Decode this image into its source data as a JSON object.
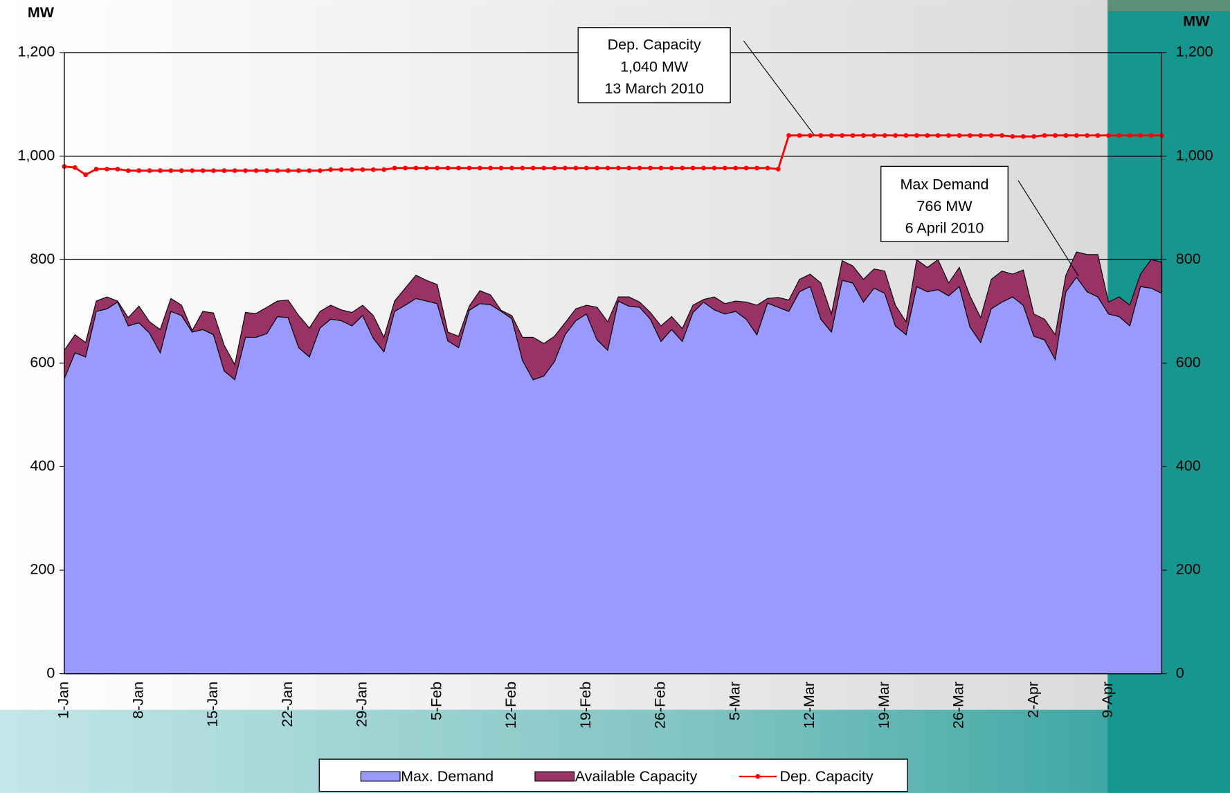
{
  "chart_data": {
    "type": "stacked-area-line",
    "y_label": "MW",
    "y2_label": "MW",
    "categories": [
      "1-Jan",
      null,
      null,
      null,
      null,
      null,
      null,
      "8-Jan",
      null,
      null,
      null,
      null,
      null,
      null,
      "15-Jan",
      null,
      null,
      null,
      null,
      null,
      null,
      "22-Jan",
      null,
      null,
      null,
      null,
      null,
      null,
      "29-Jan",
      null,
      null,
      null,
      null,
      null,
      null,
      "5-Feb",
      null,
      null,
      null,
      null,
      null,
      null,
      "12-Feb",
      null,
      null,
      null,
      null,
      null,
      null,
      "19-Feb",
      null,
      null,
      null,
      null,
      null,
      null,
      "26-Feb",
      null,
      null,
      null,
      null,
      null,
      null,
      "5-Mar",
      null,
      null,
      null,
      null,
      null,
      null,
      "12-Mar",
      null,
      null,
      null,
      null,
      null,
      null,
      "19-Mar",
      null,
      null,
      null,
      null,
      null,
      null,
      "26-Mar",
      null,
      null,
      null,
      null,
      null,
      null,
      "2-Apr",
      null,
      null,
      null,
      null,
      null,
      null,
      "9-Apr",
      null,
      null,
      null,
      null,
      null
    ],
    "series": [
      {
        "name": "Max. Demand",
        "color": "#9999ff",
        "kind": "area",
        "values": [
          570,
          620,
          612,
          700,
          705,
          718,
          672,
          678,
          658,
          620,
          700,
          692,
          660,
          665,
          655,
          585,
          568,
          650,
          650,
          657,
          690,
          688,
          630,
          612,
          668,
          685,
          682,
          672,
          692,
          648,
          622,
          700,
          712,
          725,
          720,
          715,
          643,
          630,
          702,
          715,
          713,
          700,
          686,
          605,
          568,
          575,
          603,
          655,
          682,
          695,
          645,
          625,
          720,
          710,
          708,
          685,
          642,
          665,
          642,
          698,
          718,
          703,
          695,
          700,
          685,
          655,
          716,
          708,
          700,
          738,
          748,
          685,
          660,
          760,
          755,
          718,
          745,
          735,
          672,
          655,
          748,
          738,
          742,
          730,
          748,
          670,
          640,
          705,
          718,
          728,
          712,
          652,
          645,
          607,
          738,
          766,
          738,
          728,
          695,
          690,
          672,
          748,
          745,
          735
        ]
      },
      {
        "name": "Available Capacity",
        "color": "#993366",
        "kind": "area",
        "values": [
          55,
          35,
          28,
          20,
          23,
          2,
          16,
          32,
          22,
          45,
          25,
          20,
          3,
          35,
          42,
          50,
          29,
          48,
          46,
          51,
          30,
          34,
          62,
          56,
          32,
          27,
          21,
          26,
          20,
          44,
          28,
          20,
          33,
          45,
          40,
          37,
          17,
          22,
          8,
          25,
          19,
          2,
          6,
          45,
          82,
          63,
          49,
          23,
          23,
          17,
          63,
          55,
          8,
          18,
          10,
          13,
          30,
          25,
          25,
          14,
          5,
          25,
          20,
          20,
          33,
          57,
          9,
          19,
          22,
          24,
          24,
          70,
          35,
          38,
          33,
          44,
          37,
          43,
          40,
          25,
          52,
          47,
          58,
          25,
          37,
          60,
          48,
          57,
          60,
          44,
          68,
          43,
          40,
          48,
          32,
          49,
          72,
          82,
          23,
          38,
          40,
          24,
          55,
          60
        ]
      },
      {
        "name": "Dep. Capacity",
        "color": "#ff0000",
        "kind": "line",
        "values": [
          980,
          978,
          964,
          975,
          975,
          975,
          972,
          972,
          972,
          972,
          972,
          972,
          972,
          972,
          972,
          972,
          972,
          972,
          972,
          972,
          972,
          972,
          972,
          972,
          972,
          974,
          974,
          974,
          974,
          974,
          974,
          977,
          977,
          977,
          977,
          977,
          977,
          977,
          977,
          977,
          977,
          977,
          977,
          977,
          977,
          977,
          977,
          977,
          977,
          977,
          977,
          977,
          977,
          977,
          977,
          977,
          977,
          977,
          977,
          977,
          977,
          977,
          977,
          977,
          977,
          977,
          977,
          975,
          1040,
          1040,
          1040,
          1040,
          1040,
          1040,
          1040,
          1040,
          1040,
          1040,
          1040,
          1040,
          1040,
          1040,
          1040,
          1040,
          1040,
          1040,
          1040,
          1040,
          1040,
          1038,
          1038,
          1038,
          1040,
          1040,
          1040,
          1040,
          1040,
          1040,
          1040,
          1040,
          1040,
          1040,
          1040,
          1040
        ]
      }
    ],
    "ylim": [
      0,
      1200
    ],
    "yticks": [
      0,
      200,
      400,
      600,
      800,
      {
        "value": 1000,
        "label": "1,000"
      },
      {
        "value": 1200,
        "label": "1,200"
      }
    ],
    "y2lim": [
      0,
      1200
    ],
    "y2ticks": [
      0,
      200,
      400,
      600,
      800,
      {
        "value": 1000,
        "label": "1,000"
      },
      {
        "value": 1200,
        "label": "1,200"
      }
    ],
    "grid": true,
    "legend": "bottom",
    "annotations": [
      {
        "lines": [
          "Dep. Capacity",
          "1,040 MW",
          "13 March 2010"
        ]
      },
      {
        "lines": [
          "Max Demand",
          "766 MW",
          "6 April 2010"
        ]
      }
    ]
  }
}
